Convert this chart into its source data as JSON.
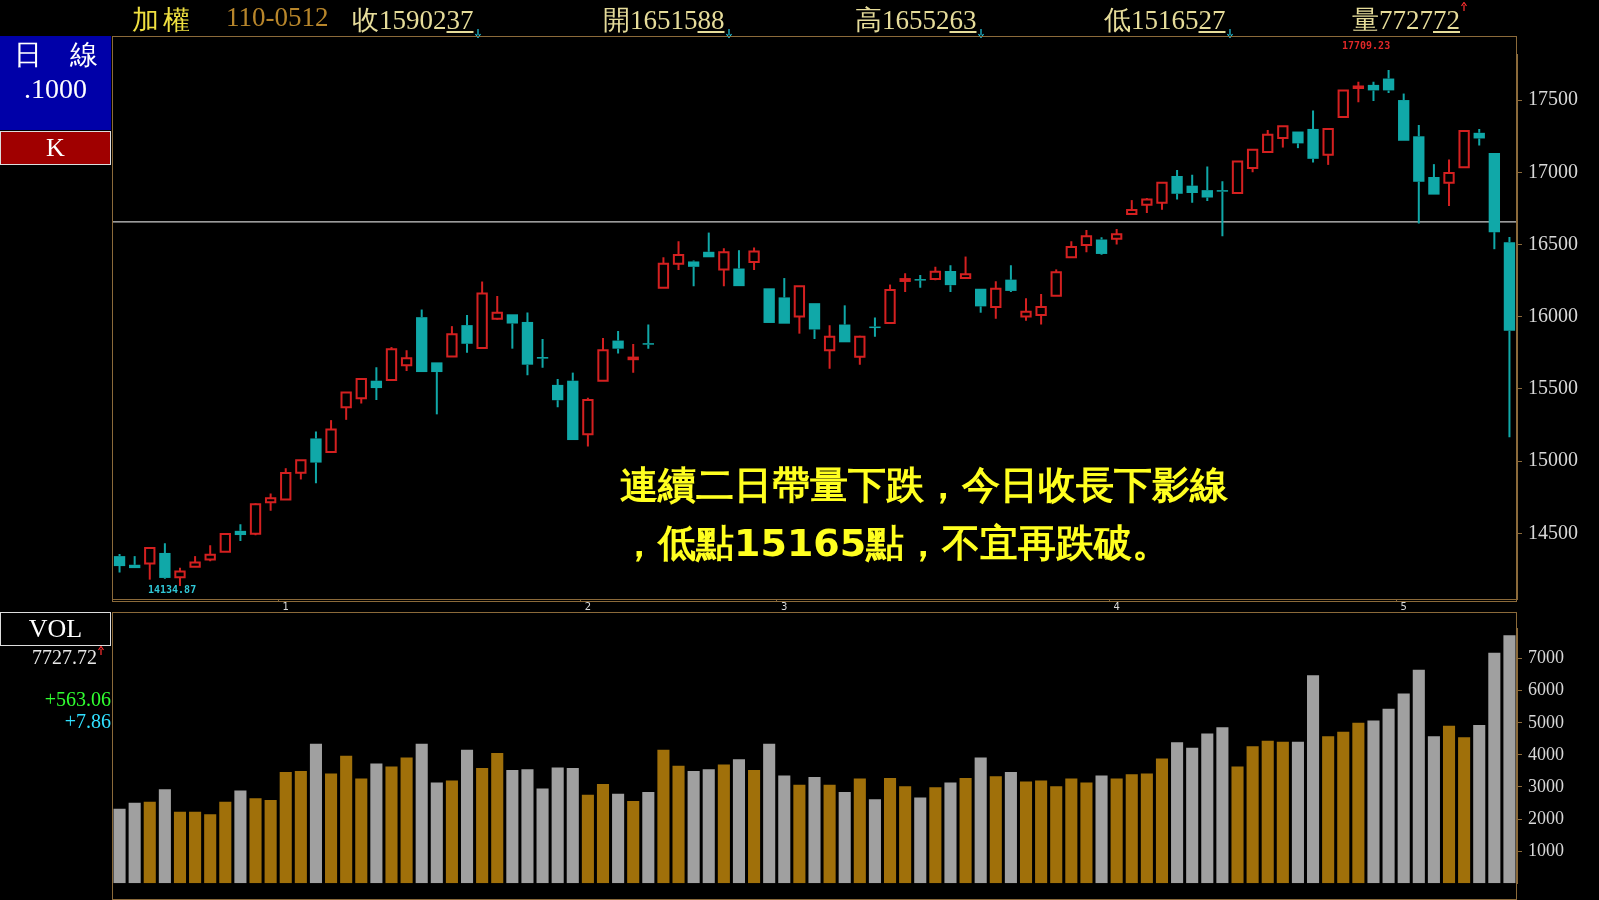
{
  "chart_data": [
    {
      "type": "candlestick",
      "categories": [
        null,
        null,
        null,
        null,
        null,
        null,
        null,
        null,
        null,
        null,
        null,
        "1",
        null,
        null,
        null,
        null,
        null,
        null,
        null,
        null,
        null,
        null,
        null,
        null,
        null,
        null,
        null,
        null,
        null,
        null,
        null,
        "2",
        null,
        null,
        null,
        null,
        null,
        null,
        null,
        null,
        null,
        null,
        null,
        null,
        "3",
        null,
        null,
        null,
        null,
        null,
        null,
        null,
        null,
        null,
        null,
        null,
        null,
        null,
        null,
        null,
        null,
        null,
        null,
        null,
        null,
        null,
        "4",
        null,
        null,
        null,
        null,
        null,
        null,
        null,
        null,
        null,
        null,
        null,
        null,
        null,
        null,
        null,
        null,
        null,
        null,
        "5",
        null,
        null,
        null,
        null,
        null,
        null,
        null
      ],
      "ohlc": [
        [
          14342,
          14357,
          14228,
          14273
        ],
        [
          14282,
          14342,
          14259,
          14259
        ],
        [
          14291,
          14399,
          14179,
          14399
        ],
        [
          14364,
          14431,
          14186,
          14191
        ],
        [
          14195,
          14262,
          14134.87,
          14235
        ],
        [
          14268,
          14342,
          14268,
          14297
        ],
        [
          14319,
          14417,
          14306,
          14351
        ],
        [
          14373,
          14495,
          14373,
          14495
        ],
        [
          14517,
          14562,
          14446,
          14488
        ],
        [
          14497,
          14708,
          14486,
          14702
        ],
        [
          14715,
          14775,
          14657,
          14742
        ],
        [
          14735,
          14951,
          14735,
          14917
        ],
        [
          14919,
          15006,
          14873,
          15006
        ],
        [
          15157,
          15206,
          14846,
          14990
        ],
        [
          15064,
          15284,
          15064,
          15219
        ],
        [
          15373,
          15475,
          15286,
          15475
        ],
        [
          15435,
          15568,
          15399,
          15568
        ],
        [
          15557,
          15650,
          15424,
          15506
        ],
        [
          15562,
          15790,
          15562,
          15775
        ],
        [
          15664,
          15768,
          15624,
          15713
        ],
        [
          15997,
          16050,
          15617,
          15617
        ],
        [
          15684,
          15684,
          15324,
          15617
        ],
        [
          15724,
          15935,
          15724,
          15879
        ],
        [
          15942,
          16013,
          15750,
          15813
        ],
        [
          15784,
          16244,
          15784,
          16161
        ],
        [
          15986,
          16144,
          15979,
          16028
        ],
        [
          16017,
          16017,
          15779,
          15953
        ],
        [
          15964,
          16030,
          15595,
          15668
        ],
        [
          15721,
          15846,
          15646,
          15710
        ],
        [
          15528,
          15568,
          15373,
          15422
        ],
        [
          15557,
          15613,
          15146,
          15146
        ],
        [
          15186,
          15439,
          15102,
          15424
        ],
        [
          15557,
          15853,
          15557,
          15768
        ],
        [
          15835,
          15901,
          15746,
          15779
        ],
        [
          15706,
          15812,
          15612,
          15717
        ],
        [
          15817,
          15946,
          15779,
          15808
        ],
        [
          16201,
          16412,
          16201,
          16368
        ],
        [
          16368,
          16523,
          16323,
          16428
        ],
        [
          16383,
          16390,
          16212,
          16346
        ],
        [
          16450,
          16583,
          16412,
          16412
        ],
        [
          16328,
          16474,
          16212,
          16446
        ],
        [
          16334,
          16461,
          16212,
          16212
        ],
        [
          16379,
          16479,
          16323,
          16452
        ],
        [
          16197,
          16197,
          15957,
          15957
        ],
        [
          16134,
          16268,
          15952,
          15952
        ],
        [
          16001,
          16212,
          15883,
          16212
        ],
        [
          16094,
          16094,
          15846,
          15912
        ],
        [
          15768,
          15941,
          15639,
          15861
        ],
        [
          15946,
          16079,
          15823,
          15823
        ],
        [
          15723,
          15868,
          15668,
          15861
        ],
        [
          15932,
          15994,
          15861,
          15923
        ],
        [
          15957,
          16223,
          15957,
          16186
        ],
        [
          16248,
          16301,
          16172,
          16261
        ],
        [
          16261,
          16290,
          16201,
          16252
        ],
        [
          16261,
          16346,
          16252,
          16312
        ],
        [
          16317,
          16357,
          16172,
          16219
        ],
        [
          16268,
          16417,
          16268,
          16294
        ],
        [
          16194,
          16194,
          16028,
          16072
        ],
        [
          16068,
          16246,
          15986,
          16194
        ],
        [
          16257,
          16357,
          16172,
          16179
        ],
        [
          16001,
          16128,
          15972,
          16034
        ],
        [
          16012,
          16157,
          15946,
          16068
        ],
        [
          16146,
          16328,
          16146,
          16308
        ],
        [
          16412,
          16523,
          16412,
          16483
        ],
        [
          16497,
          16601,
          16446,
          16557
        ],
        [
          16535,
          16550,
          16430,
          16435
        ],
        [
          16541,
          16608,
          16501,
          16572
        ],
        [
          16712,
          16808,
          16712,
          16739
        ],
        [
          16775,
          16823,
          16719,
          16812
        ],
        [
          16790,
          16928,
          16741,
          16928
        ],
        [
          16975,
          17017,
          16812,
          16852
        ],
        [
          16908,
          16983,
          16790,
          16857
        ],
        [
          16877,
          17041,
          16801,
          16826
        ],
        [
          16877,
          16939,
          16557,
          16868
        ],
        [
          16857,
          17075,
          16857,
          17075
        ],
        [
          17030,
          17157,
          17001,
          17157
        ],
        [
          17141,
          17294,
          17134,
          17261
        ],
        [
          17239,
          17319,
          17172,
          17319
        ],
        [
          17283,
          17283,
          17168,
          17201
        ],
        [
          17301,
          17428,
          17068,
          17094
        ],
        [
          17123,
          17301,
          17052,
          17301
        ],
        [
          17383,
          17568,
          17383,
          17568
        ],
        [
          17586,
          17628,
          17486,
          17595
        ],
        [
          17606,
          17628,
          17494,
          17568
        ],
        [
          17650,
          17709.23,
          17550,
          17568
        ],
        [
          17501,
          17546,
          17219,
          17219
        ],
        [
          17250,
          17328,
          16646,
          16935
        ],
        [
          16968,
          17057,
          16846,
          16846
        ],
        [
          16928,
          17090,
          16768,
          16995
        ],
        [
          17035,
          17286,
          17035,
          17286
        ],
        [
          17274,
          17301,
          17186,
          17235
        ],
        [
          17135,
          17135,
          16468,
          16586
        ],
        [
          16515.88,
          16552.63,
          15165.27,
          15902.37
        ]
      ],
      "colors": [
        "#10a8a8",
        "#10a8a8",
        "#d42020",
        "#10a8a8",
        "#d42020",
        "#d42020",
        "#d42020",
        "#d42020",
        "#10a8a8",
        "#d42020",
        "#d42020",
        "#d42020",
        "#d42020",
        "#10a8a8",
        "#d42020",
        "#d42020",
        "#d42020",
        "#10a8a8",
        "#d42020",
        "#d42020",
        "#10a8a8",
        "#10a8a8",
        "#d42020",
        "#10a8a8",
        "#d42020",
        "#d42020",
        "#10a8a8",
        "#10a8a8",
        "#10a8a8",
        "#10a8a8",
        "#10a8a8",
        "#d42020",
        "#d42020",
        "#10a8a8",
        "#d42020",
        "#10a8a8",
        "#d42020",
        "#d42020",
        "#10a8a8",
        "#10a8a8",
        "#d42020",
        "#10a8a8",
        "#d42020",
        "#10a8a8",
        "#10a8a8",
        "#d42020",
        "#10a8a8",
        "#d42020",
        "#10a8a8",
        "#d42020",
        "#10a8a8",
        "#d42020",
        "#d42020",
        "#10a8a8",
        "#d42020",
        "#10a8a8",
        "#d42020",
        "#10a8a8",
        "#d42020",
        "#10a8a8",
        "#d42020",
        "#d42020",
        "#d42020",
        "#d42020",
        "#d42020",
        "#10a8a8",
        "#d42020",
        "#d42020",
        "#d42020",
        "#d42020",
        "#10a8a8",
        "#10a8a8",
        "#10a8a8",
        "#10a8a8",
        "#d42020",
        "#d42020",
        "#d42020",
        "#d42020",
        "#10a8a8",
        "#10a8a8",
        "#d42020",
        "#d42020",
        "#d42020",
        "#10a8a8",
        "#10a8a8",
        "#10a8a8",
        "#10a8a8",
        "#10a8a8",
        "#d42020",
        "#d42020",
        "#10a8a8",
        "#10a8a8",
        "#10a8a8"
      ],
      "ylim": [
        14045,
        17820
      ],
      "yticks": [
        14500,
        15000,
        15500,
        16000,
        16500,
        17000,
        17500
      ],
      "grid": false,
      "legend": false,
      "ref_lines": [
        {
          "axis": "y",
          "value": 16657,
          "color": "#ffffff"
        }
      ],
      "annotations": [
        "加",
        "權",
        "110-0512",
        "收1590237",
        "開1651588",
        "高1655263",
        "低1516527",
        "量772772",
        "日　線",
        ".1000",
        "K",
        "連續二日帶量下跌，今日收長下影線，低點15165點，不宜再跌破。",
        "17709.23",
        "14134.87"
      ]
    },
    {
      "type": "bar",
      "categories": [
        null,
        null,
        null,
        null,
        null,
        null,
        null,
        null,
        null,
        null,
        null,
        null,
        null,
        null,
        null,
        null,
        null,
        null,
        null,
        null,
        null,
        null,
        null,
        null,
        null,
        null,
        null,
        null,
        null,
        null,
        null,
        null,
        null,
        null,
        null,
        null,
        null,
        null,
        null,
        null,
        null,
        null,
        null,
        null,
        null,
        null,
        null,
        null,
        null,
        null,
        null,
        null,
        null,
        null,
        null,
        null,
        null,
        null,
        null,
        null,
        null,
        null,
        null,
        null,
        null,
        null,
        null,
        null,
        null,
        null,
        null,
        null,
        null,
        null,
        null,
        null,
        null,
        null,
        null,
        null,
        null,
        null,
        null,
        null,
        null,
        null,
        null,
        null,
        null,
        null,
        null,
        null,
        null
      ],
      "values": [
        2320,
        2510,
        2540,
        2930,
        2230,
        2230,
        2150,
        2540,
        2890,
        2650,
        2590,
        3470,
        3500,
        4350,
        3420,
        3970,
        3260,
        3730,
        3640,
        3920,
        4350,
        3140,
        3200,
        4160,
        3590,
        4060,
        3530,
        3550,
        2950,
        3610,
        3590,
        2760,
        3090,
        2790,
        2560,
        2840,
        4160,
        3660,
        3500,
        3550,
        3700,
        3860,
        3530,
        4350,
        3360,
        3070,
        3310,
        3070,
        2840,
        3260,
        2620,
        3280,
        3020,
        2670,
        2990,
        3140,
        3280,
        3920,
        3330,
        3470,
        3170,
        3200,
        3020,
        3260,
        3140,
        3360,
        3260,
        3400,
        3420,
        3890,
        4390,
        4220,
        4670,
        4860,
        3640,
        4270,
        4440,
        4410,
        4410,
        6480,
        4580,
        4720,
        5000,
        5070,
        5440,
        5910,
        6650,
        4580,
        4910,
        4550,
        4930,
        7180,
        7730
      ],
      "colors": [
        "#a0a0a0",
        "#a0a0a0",
        "#a0700a",
        "#a0a0a0",
        "#a0700a",
        "#a0700a",
        "#a0700a",
        "#a0700a",
        "#a0a0a0",
        "#a0700a",
        "#a0700a",
        "#a0700a",
        "#a0700a",
        "#a0a0a0",
        "#a0700a",
        "#a0700a",
        "#a0700a",
        "#a0a0a0",
        "#a0700a",
        "#a0700a",
        "#a0a0a0",
        "#a0a0a0",
        "#a0700a",
        "#a0a0a0",
        "#a0700a",
        "#a0700a",
        "#a0a0a0",
        "#a0a0a0",
        "#a0a0a0",
        "#a0a0a0",
        "#a0a0a0",
        "#a0700a",
        "#a0700a",
        "#a0a0a0",
        "#a0700a",
        "#a0a0a0",
        "#a0700a",
        "#a0700a",
        "#a0a0a0",
        "#a0a0a0",
        "#a0700a",
        "#a0a0a0",
        "#a0700a",
        "#a0a0a0",
        "#a0a0a0",
        "#a0700a",
        "#a0a0a0",
        "#a0700a",
        "#a0a0a0",
        "#a0700a",
        "#a0a0a0",
        "#a0700a",
        "#a0700a",
        "#a0a0a0",
        "#a0700a",
        "#a0a0a0",
        "#a0700a",
        "#a0a0a0",
        "#a0700a",
        "#a0a0a0",
        "#a0700a",
        "#a0700a",
        "#a0700a",
        "#a0700a",
        "#a0700a",
        "#a0a0a0",
        "#a0700a",
        "#a0700a",
        "#a0700a",
        "#a0700a",
        "#a0a0a0",
        "#a0a0a0",
        "#a0a0a0",
        "#a0a0a0",
        "#a0700a",
        "#a0700a",
        "#a0700a",
        "#a0700a",
        "#a0a0a0",
        "#a0a0a0",
        "#a0700a",
        "#a0700a",
        "#a0700a",
        "#a0a0a0",
        "#a0a0a0",
        "#a0a0a0",
        "#a0a0a0",
        "#a0a0a0",
        "#a0700a",
        "#a0700a",
        "#a0a0a0",
        "#a0a0a0",
        "#a0a0a0"
      ],
      "ylim": [
        0,
        7930
      ],
      "yticks": [
        1000,
        2000,
        3000,
        4000,
        5000,
        6000,
        7000
      ],
      "grid": false,
      "legend": false,
      "tick_labels": "y",
      "annotations": [
        "VOL",
        "7727.72",
        "+563.06",
        "+7.86"
      ]
    }
  ]
}
